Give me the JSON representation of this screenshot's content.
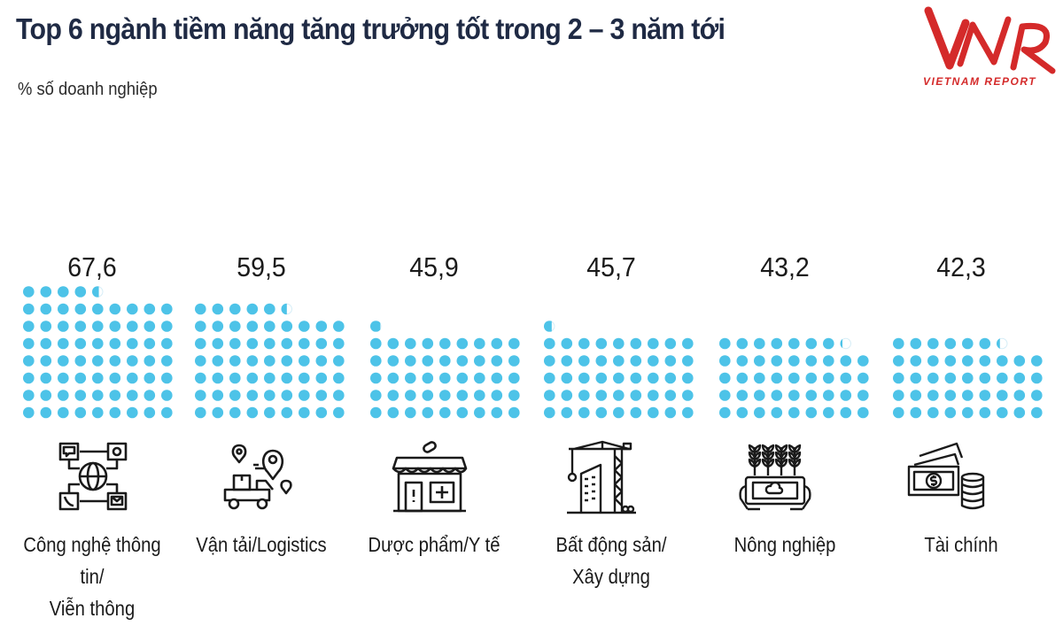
{
  "header": {
    "title": "Top 6 ngành tiềm năng tăng trưởng tốt trong 2 – 3 năm tới",
    "subtitle": "% số doanh nghiệp"
  },
  "logo": {
    "mark": "VNR",
    "tagline": "VIETNAM REPORT",
    "color": "#d42a2a"
  },
  "colors": {
    "dot": "#4dc3e8",
    "dot_empty": "#ffffff",
    "text": "#1a1a1a",
    "title": "#1f2a44"
  },
  "chart_data": {
    "type": "bar",
    "title": "Top 6 ngành tiềm năng tăng trưởng tốt trong 2 – 3 năm tới",
    "ylabel": "% số doanh nghiệp",
    "unit_per_dot": 1,
    "value_labels": [
      "67,6",
      "59,5",
      "45,9",
      "45,7",
      "43,2",
      "42,3"
    ],
    "categories": [
      [
        "Công nghệ thông tin/",
        "Viễn thông"
      ],
      [
        "Vận tải/Logistics"
      ],
      [
        "Dược phẩm/Y tế"
      ],
      [
        "Bất động sản/",
        "Xây dựng"
      ],
      [
        "Nông nghiệp"
      ],
      [
        "Tài chính"
      ]
    ],
    "values": [
      67.6,
      59.5,
      45.9,
      45.7,
      43.2,
      42.3
    ],
    "icons": [
      "network-communication-icon",
      "logistics-truck-icon",
      "pharmacy-store-icon",
      "construction-crane-icon",
      "agriculture-tablet-icon",
      "money-coins-icon"
    ]
  }
}
